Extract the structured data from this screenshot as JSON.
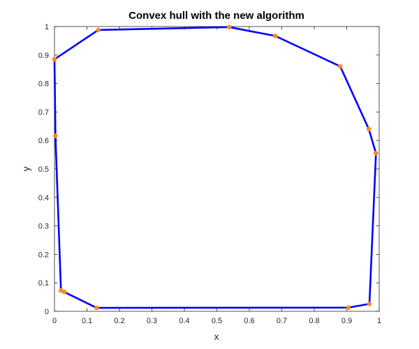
{
  "chart_data": {
    "type": "line",
    "title": "Convex hull with the new algorithm",
    "xlabel": "x",
    "ylabel": "y",
    "xlim": [
      0,
      1
    ],
    "ylim": [
      0,
      1
    ],
    "xticks": [
      "0",
      "0.1",
      "0.2",
      "0.3",
      "0.4",
      "0.5",
      "0.6",
      "0.7",
      "0.8",
      "0.9",
      "1"
    ],
    "yticks": [
      "0",
      "0.1",
      "0.2",
      "0.3",
      "0.4",
      "0.5",
      "0.6",
      "0.7",
      "0.8",
      "0.9",
      "1"
    ],
    "grid": false,
    "line_color": "#0000ff",
    "marker_color": "#ff8c1a",
    "x": [
      0.0,
      0.135,
      0.538,
      0.68,
      0.88,
      0.968,
      0.99,
      0.97,
      0.905,
      0.13,
      0.03,
      0.02,
      0.003,
      0.0
    ],
    "y": [
      0.885,
      0.988,
      0.998,
      0.967,
      0.86,
      0.64,
      0.555,
      0.026,
      0.013,
      0.012,
      0.068,
      0.073,
      0.616,
      0.885
    ]
  }
}
